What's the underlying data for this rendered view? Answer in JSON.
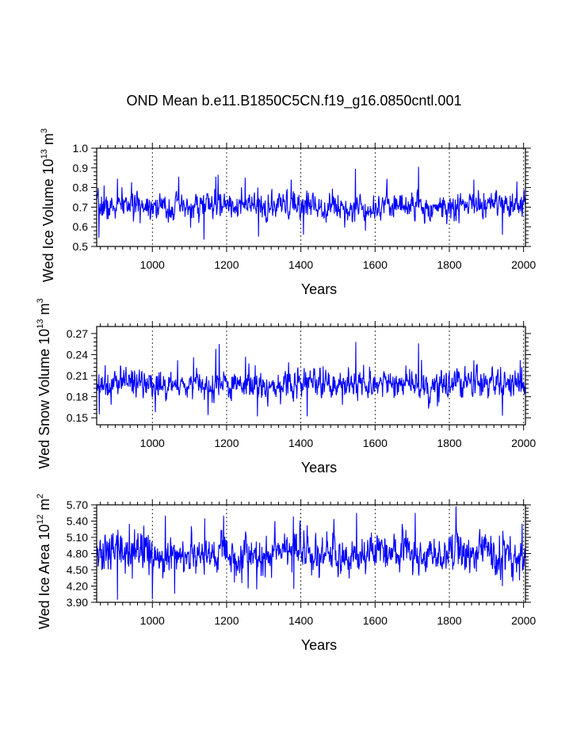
{
  "title": "OND Mean b.e11.B1850C5CN.f19_g16.0850cntl.001",
  "colors": {
    "series": "#0000ff",
    "axis": "#000000",
    "grid": "#000000"
  },
  "chart_data": [
    {
      "type": "line",
      "name": "Wed Ice Volume",
      "ylabel": {
        "main": "Wed Ice Volume 10",
        "exp": "13",
        "unit": " m",
        "unit_exp": "3"
      },
      "xlabel": "Years",
      "xlim": [
        850,
        2005
      ],
      "ylim": [
        0.5,
        1.0
      ],
      "xticks": [
        1000,
        1200,
        1400,
        1600,
        1800,
        2000
      ],
      "yticks": [
        0.5,
        0.6,
        0.7,
        0.8,
        0.9,
        1.0
      ],
      "ytick_labels": [
        "0.5",
        "0.6",
        "0.7",
        "0.8",
        "0.9",
        "1.0"
      ],
      "grid_x": [
        1000,
        1200,
        1400,
        1600,
        1800,
        2000
      ],
      "series_model": {
        "mean": 0.705,
        "sd": 0.042,
        "min_obs": 0.535,
        "max_obs": 0.905,
        "years": [
          850,
          2005
        ]
      },
      "peaks": [
        [
          856,
          0.545
        ],
        [
          870,
          0.81
        ],
        [
          906,
          0.845
        ],
        [
          1071,
          0.855
        ],
        [
          1139,
          0.535
        ],
        [
          1171,
          0.855
        ],
        [
          1177,
          0.865
        ],
        [
          1250,
          0.85
        ],
        [
          1286,
          0.55
        ],
        [
          1374,
          0.84
        ],
        [
          1407,
          0.56
        ],
        [
          1547,
          0.895
        ],
        [
          1574,
          0.58
        ],
        [
          1717,
          0.905
        ],
        [
          1866,
          0.84
        ],
        [
          1943,
          0.56
        ],
        [
          1982,
          0.83
        ]
      ]
    },
    {
      "type": "line",
      "name": "Wed Snow Volume",
      "ylabel": {
        "main": "Wed Snow Volume 10",
        "exp": "13",
        "unit": " m",
        "unit_exp": "3"
      },
      "xlabel": "Years",
      "xlim": [
        850,
        2005
      ],
      "ylim": [
        0.14,
        0.28
      ],
      "xticks": [
        1000,
        1200,
        1400,
        1600,
        1800,
        2000
      ],
      "yticks": [
        0.15,
        0.18,
        0.21,
        0.24,
        0.27
      ],
      "ytick_labels": [
        "0.15",
        "0.18",
        "0.21",
        "0.24",
        "0.27"
      ],
      "grid_x": [
        1000,
        1200,
        1400,
        1600,
        1800,
        2000
      ],
      "series_model": {
        "mean": 0.198,
        "sd": 0.013,
        "min_obs": 0.151,
        "max_obs": 0.258,
        "years": [
          850,
          2005
        ]
      },
      "peaks": [
        [
          857,
          0.155
        ],
        [
          873,
          0.225
        ],
        [
          1008,
          0.158
        ],
        [
          1068,
          0.232
        ],
        [
          1111,
          0.236
        ],
        [
          1150,
          0.154
        ],
        [
          1171,
          0.248
        ],
        [
          1180,
          0.255
        ],
        [
          1251,
          0.237
        ],
        [
          1283,
          0.152
        ],
        [
          1367,
          0.229
        ],
        [
          1417,
          0.152
        ],
        [
          1548,
          0.258
        ],
        [
          1717,
          0.256
        ],
        [
          1866,
          0.232
        ],
        [
          1943,
          0.153
        ],
        [
          1991,
          0.232
        ]
      ]
    },
    {
      "type": "line",
      "name": "Wed Ice Area",
      "ylabel": {
        "main": "Wed Ice Area 10",
        "exp": "12",
        "unit": " m",
        "unit_exp": "2"
      },
      "xlabel": "Years",
      "xlim": [
        850,
        2005
      ],
      "ylim": [
        3.9,
        5.7
      ],
      "xticks": [
        1000,
        1200,
        1400,
        1600,
        1800,
        2000
      ],
      "yticks": [
        3.9,
        4.2,
        4.5,
        4.8,
        5.1,
        5.4,
        5.7
      ],
      "ytick_labels": [
        "3.90",
        "4.20",
        "4.50",
        "4.80",
        "5.10",
        "5.40",
        "5.70"
      ],
      "grid_x": [
        1000,
        1200,
        1400,
        1600,
        1800,
        2000
      ],
      "series_model": {
        "mean": 4.8,
        "sd": 0.22,
        "min_obs": 3.92,
        "max_obs": 5.67,
        "years": [
          850,
          2005
        ]
      },
      "peaks": [
        [
          906,
          3.95
        ],
        [
          938,
          5.35
        ],
        [
          1000,
          3.96
        ],
        [
          1035,
          5.5
        ],
        [
          1060,
          4.06
        ],
        [
          1141,
          5.45
        ],
        [
          1192,
          5.5
        ],
        [
          1281,
          4.14
        ],
        [
          1330,
          5.4
        ],
        [
          1381,
          4.15
        ],
        [
          1550,
          5.55
        ],
        [
          1708,
          5.55
        ],
        [
          1818,
          5.67
        ],
        [
          1943,
          4.2
        ],
        [
          1996,
          5.35
        ]
      ]
    }
  ]
}
